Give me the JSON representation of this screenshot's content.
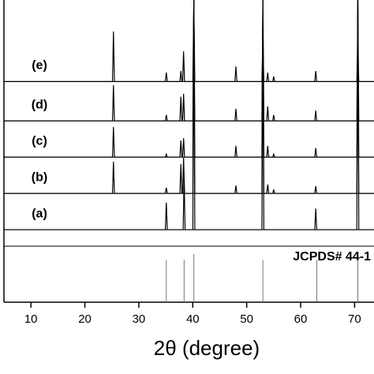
{
  "chart_data": {
    "type": "line",
    "xlabel": "2θ (degree)",
    "xlim": [
      5,
      73.6
    ],
    "xticks": [
      10,
      20,
      30,
      40,
      50,
      60,
      70
    ],
    "ylim": [
      0,
      100
    ],
    "series": [
      {
        "name": "(a)",
        "color": "#000000",
        "baseline": 24,
        "x": [
          35.1,
          38.4,
          40.2,
          53,
          62.8,
          70.6
        ],
        "values": [
          33,
          41,
          100,
          87,
          31,
          100
        ]
      },
      {
        "name": "(b)",
        "color": "#000000",
        "baseline": 36,
        "x": [
          25.3,
          35.1,
          37.8,
          38.3,
          40.2,
          48,
          53,
          53.9,
          55,
          62.8,
          70.6
        ],
        "values": [
          46.5,
          37.9,
          45.7,
          47.8,
          100,
          38.6,
          100,
          39,
          37.3,
          38.4,
          100
        ]
      },
      {
        "name": "(c)",
        "color": "#000000",
        "baseline": 48,
        "x": [
          25.3,
          35.1,
          37.8,
          38.3,
          40.2,
          48,
          53,
          53.9,
          55,
          62.8,
          70.6
        ],
        "values": [
          58,
          49,
          53.5,
          54.3,
          100,
          51.7,
          100,
          51.7,
          49,
          51,
          100
        ]
      },
      {
        "name": "(d)",
        "color": "#000000",
        "baseline": 60,
        "x": [
          25.3,
          35.1,
          37.8,
          38.3,
          40.2,
          48,
          53,
          53.9,
          55,
          62.8,
          70.6
        ],
        "values": [
          71.8,
          62,
          68,
          69,
          100,
          64,
          100,
          64.8,
          62,
          63.4,
          100
        ]
      },
      {
        "name": "(e)",
        "color": "#000000",
        "baseline": 73,
        "x": [
          25.3,
          35.1,
          37.8,
          38.3,
          40.2,
          48,
          53,
          53.9,
          55,
          62.8,
          70.6
        ],
        "values": [
          89.6,
          76,
          76.5,
          83,
          100,
          78,
          87,
          76,
          74.7,
          76.5,
          85.6
        ]
      }
    ],
    "reference": {
      "name": "JCPDS# 44-1",
      "color": "#777777",
      "x": [
        35.1,
        38.4,
        40.2,
        53,
        63,
        70.6
      ],
      "values": [
        14,
        14,
        16,
        14,
        14,
        14
      ]
    }
  }
}
